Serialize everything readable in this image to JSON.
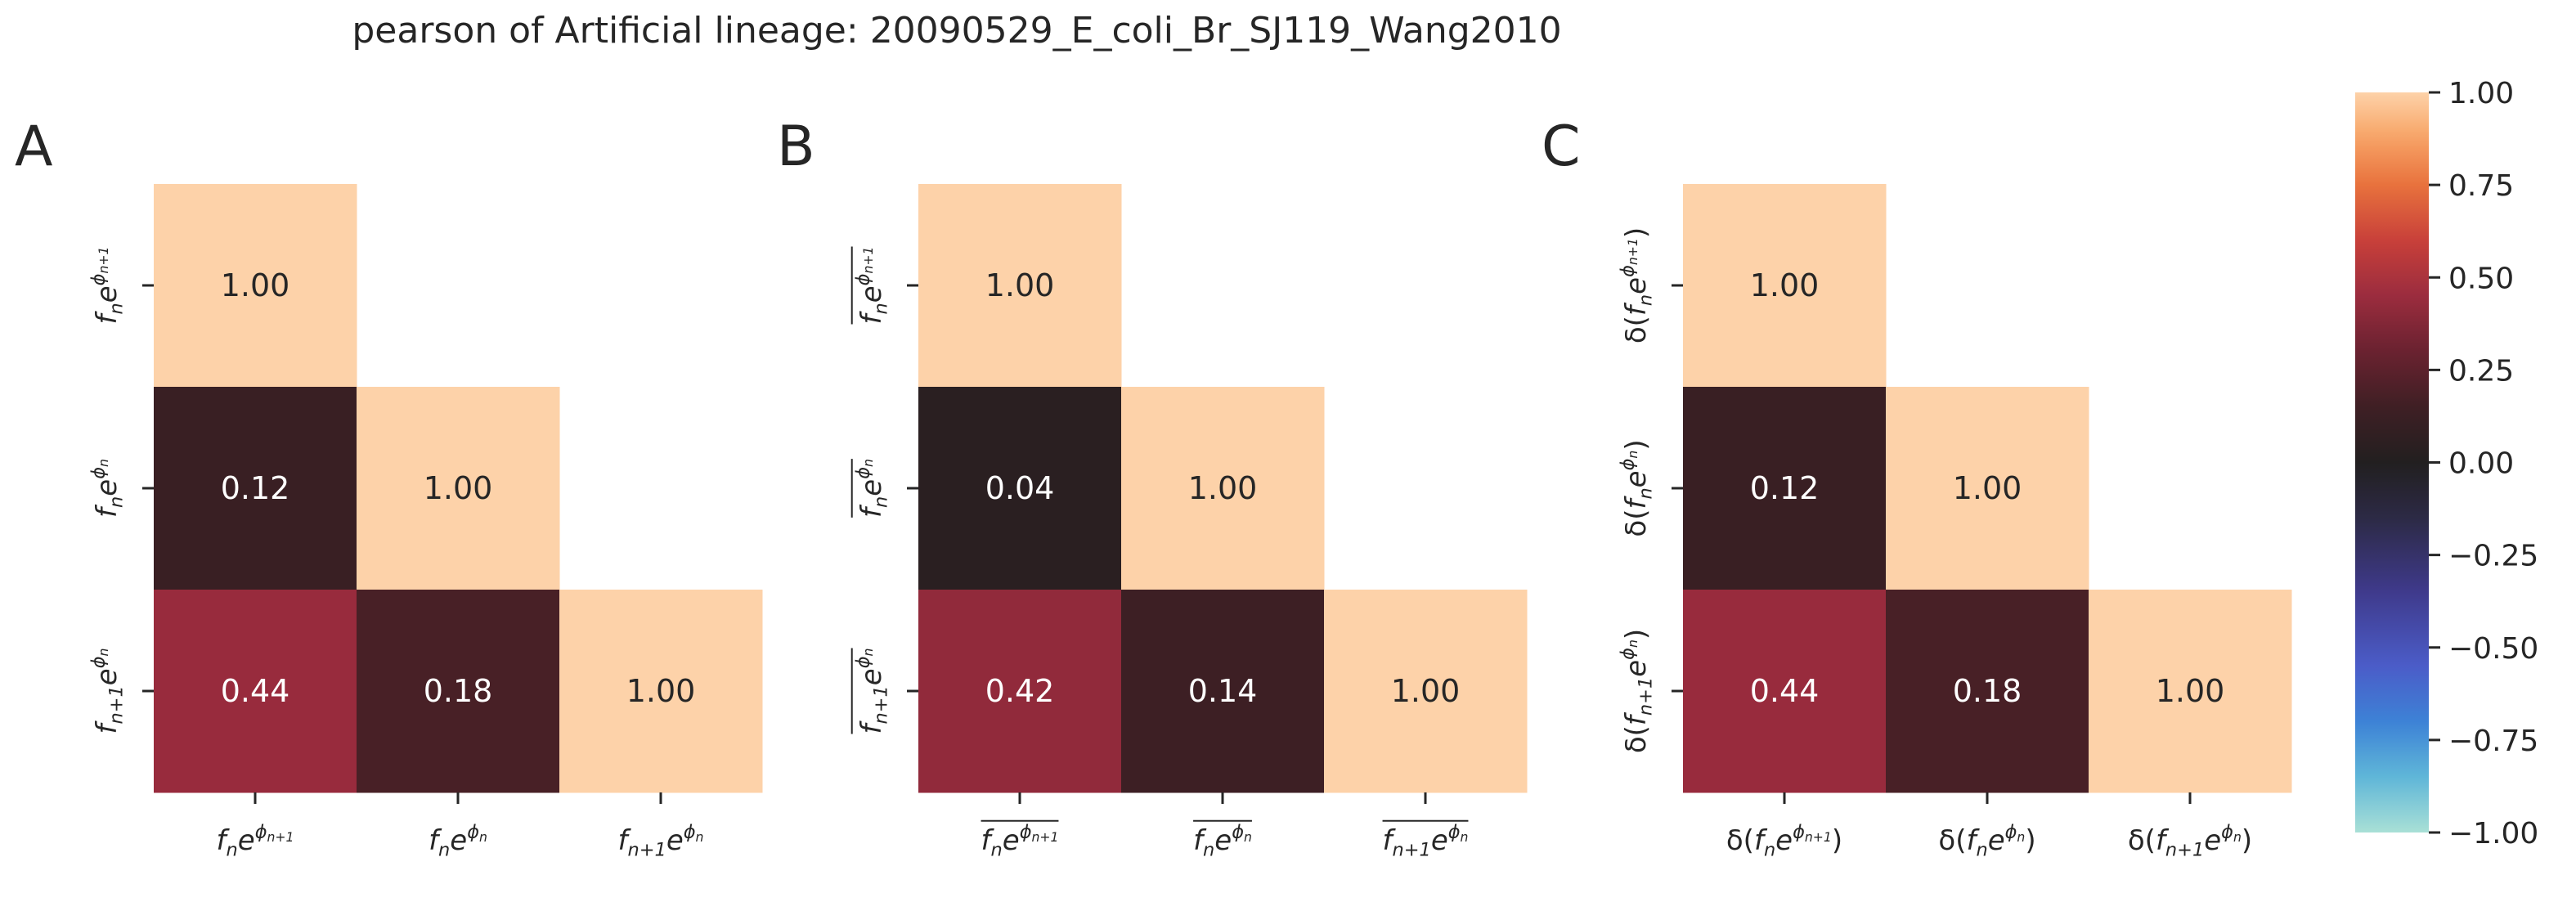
{
  "title": "pearson of Artificial lineage: 20090529_E_coli_Br_SJ119_Wang2010",
  "colors": {
    "background": "#ffffff",
    "text": "#262626",
    "colormap": [
      [
        -1.0,
        "#a9e0d6"
      ],
      [
        -0.85,
        "#5fb6d8"
      ],
      [
        -0.7,
        "#3d82d6"
      ],
      [
        -0.55,
        "#4b5cc8"
      ],
      [
        -0.35,
        "#3f3a8c"
      ],
      [
        -0.15,
        "#2c2a45"
      ],
      [
        0.0,
        "#221f20"
      ],
      [
        0.15,
        "#3f1f24"
      ],
      [
        0.3,
        "#6a2230"
      ],
      [
        0.45,
        "#9b2c3e"
      ],
      [
        0.6,
        "#c8403a"
      ],
      [
        0.75,
        "#e8723d"
      ],
      [
        0.88,
        "#f7a466"
      ],
      [
        1.0,
        "#fdd2a9"
      ]
    ]
  },
  "chart_data": [
    {
      "panel": "A",
      "type": "heatmap",
      "x_labels": [
        {
          "parts": [
            [
              "f",
              ""
            ],
            [
              "n",
              "dn"
            ],
            [
              "e",
              ""
            ],
            [
              "ϕ",
              "up"
            ],
            [
              "n+1",
              "updn"
            ]
          ],
          "overline": false,
          "delta": false
        },
        {
          "parts": [
            [
              "f",
              ""
            ],
            [
              "n",
              "dn"
            ],
            [
              "e",
              ""
            ],
            [
              "ϕ",
              "up"
            ],
            [
              "n",
              "updn"
            ]
          ],
          "overline": false,
          "delta": false
        },
        {
          "parts": [
            [
              "f",
              ""
            ],
            [
              "n+1",
              "dn"
            ],
            [
              "e",
              ""
            ],
            [
              "ϕ",
              "up"
            ],
            [
              "n",
              "updn"
            ]
          ],
          "overline": false,
          "delta": false
        }
      ],
      "y_labels": [
        {
          "parts": [
            [
              "f",
              ""
            ],
            [
              "n",
              "dn"
            ],
            [
              "e",
              ""
            ],
            [
              "ϕ",
              "up"
            ],
            [
              "n+1",
              "updn"
            ]
          ],
          "overline": false,
          "delta": false
        },
        {
          "parts": [
            [
              "f",
              ""
            ],
            [
              "n",
              "dn"
            ],
            [
              "e",
              ""
            ],
            [
              "ϕ",
              "up"
            ],
            [
              "n",
              "updn"
            ]
          ],
          "overline": false,
          "delta": false
        },
        {
          "parts": [
            [
              "f",
              ""
            ],
            [
              "n+1",
              "dn"
            ],
            [
              "e",
              ""
            ],
            [
              "ϕ",
              "up"
            ],
            [
              "n",
              "updn"
            ]
          ],
          "overline": false,
          "delta": false
        }
      ],
      "values": [
        [
          1.0,
          null,
          null
        ],
        [
          0.12,
          1.0,
          null
        ],
        [
          0.44,
          0.18,
          1.0
        ]
      ],
      "annotations": [
        [
          "1.00",
          "",
          ""
        ],
        [
          "0.12",
          "1.00",
          ""
        ],
        [
          "0.44",
          "0.18",
          "1.00"
        ]
      ]
    },
    {
      "panel": "B",
      "type": "heatmap",
      "x_labels": [
        {
          "parts": [
            [
              "f",
              ""
            ],
            [
              "n",
              "dn"
            ],
            [
              "e",
              ""
            ],
            [
              "ϕ",
              "up"
            ],
            [
              "n+1",
              "updn"
            ]
          ],
          "overline": true,
          "delta": false
        },
        {
          "parts": [
            [
              "f",
              ""
            ],
            [
              "n",
              "dn"
            ],
            [
              "e",
              ""
            ],
            [
              "ϕ",
              "up"
            ],
            [
              "n",
              "updn"
            ]
          ],
          "overline": true,
          "delta": false
        },
        {
          "parts": [
            [
              "f",
              ""
            ],
            [
              "n+1",
              "dn"
            ],
            [
              "e",
              ""
            ],
            [
              "ϕ",
              "up"
            ],
            [
              "n",
              "updn"
            ]
          ],
          "overline": true,
          "delta": false
        }
      ],
      "y_labels": [
        {
          "parts": [
            [
              "f",
              ""
            ],
            [
              "n",
              "dn"
            ],
            [
              "e",
              ""
            ],
            [
              "ϕ",
              "up"
            ],
            [
              "n+1",
              "updn"
            ]
          ],
          "overline": true,
          "delta": false
        },
        {
          "parts": [
            [
              "f",
              ""
            ],
            [
              "n",
              "dn"
            ],
            [
              "e",
              ""
            ],
            [
              "ϕ",
              "up"
            ],
            [
              "n",
              "updn"
            ]
          ],
          "overline": true,
          "delta": false
        },
        {
          "parts": [
            [
              "f",
              ""
            ],
            [
              "n+1",
              "dn"
            ],
            [
              "e",
              ""
            ],
            [
              "ϕ",
              "up"
            ],
            [
              "n",
              "updn"
            ]
          ],
          "overline": true,
          "delta": false
        }
      ],
      "values": [
        [
          1.0,
          null,
          null
        ],
        [
          0.04,
          1.0,
          null
        ],
        [
          0.42,
          0.14,
          1.0
        ]
      ],
      "annotations": [
        [
          "1.00",
          "",
          ""
        ],
        [
          "0.04",
          "1.00",
          ""
        ],
        [
          "0.42",
          "0.14",
          "1.00"
        ]
      ]
    },
    {
      "panel": "C",
      "type": "heatmap",
      "x_labels": [
        {
          "parts": [
            [
              "f",
              ""
            ],
            [
              "n",
              "dn"
            ],
            [
              "e",
              ""
            ],
            [
              "ϕ",
              "up"
            ],
            [
              "n+1",
              "updn"
            ]
          ],
          "overline": false,
          "delta": true
        },
        {
          "parts": [
            [
              "f",
              ""
            ],
            [
              "n",
              "dn"
            ],
            [
              "e",
              ""
            ],
            [
              "ϕ",
              "up"
            ],
            [
              "n",
              "updn"
            ]
          ],
          "overline": false,
          "delta": true
        },
        {
          "parts": [
            [
              "f",
              ""
            ],
            [
              "n+1",
              "dn"
            ],
            [
              "e",
              ""
            ],
            [
              "ϕ",
              "up"
            ],
            [
              "n",
              "updn"
            ]
          ],
          "overline": false,
          "delta": true
        }
      ],
      "y_labels": [
        {
          "parts": [
            [
              "f",
              ""
            ],
            [
              "n",
              "dn"
            ],
            [
              "e",
              ""
            ],
            [
              "ϕ",
              "up"
            ],
            [
              "n+1",
              "updn"
            ]
          ],
          "overline": false,
          "delta": true
        },
        {
          "parts": [
            [
              "f",
              ""
            ],
            [
              "n",
              "dn"
            ],
            [
              "e",
              ""
            ],
            [
              "ϕ",
              "up"
            ],
            [
              "n",
              "updn"
            ]
          ],
          "overline": false,
          "delta": true
        },
        {
          "parts": [
            [
              "f",
              ""
            ],
            [
              "n+1",
              "dn"
            ],
            [
              "e",
              ""
            ],
            [
              "ϕ",
              "up"
            ],
            [
              "n",
              "updn"
            ]
          ],
          "overline": false,
          "delta": true
        }
      ],
      "values": [
        [
          1.0,
          null,
          null
        ],
        [
          0.12,
          1.0,
          null
        ],
        [
          0.44,
          0.18,
          1.0
        ]
      ],
      "annotations": [
        [
          "1.00",
          "",
          ""
        ],
        [
          "0.12",
          "1.00",
          ""
        ],
        [
          "0.44",
          "0.18",
          "1.00"
        ]
      ]
    },
    {
      "type": "colorbar",
      "vmin": -1.0,
      "vmax": 1.0,
      "ticks": [
        1.0,
        0.75,
        0.5,
        0.25,
        0.0,
        -0.25,
        -0.5,
        -0.75,
        -1.0
      ],
      "tick_labels": [
        "1.00",
        "0.75",
        "0.50",
        "0.25",
        "0.00",
        "−0.25",
        "−0.50",
        "−0.75",
        "−1.00"
      ]
    }
  ]
}
